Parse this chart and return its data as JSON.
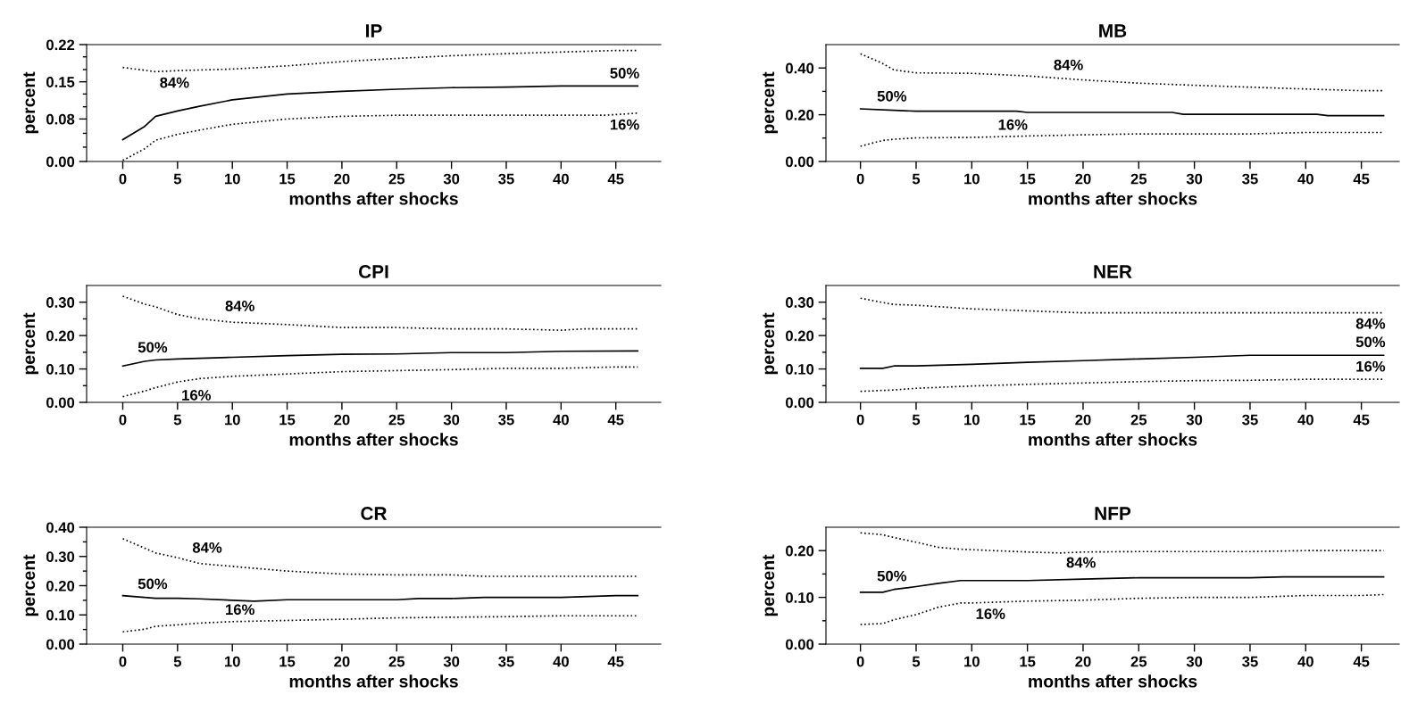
{
  "chart_data": [
    {
      "type": "line",
      "title": "IP",
      "xlabel": "months after shocks",
      "ylabel": "percent",
      "xlim": [
        -3.3,
        49.1
      ],
      "xticks": [
        0,
        5,
        10,
        15,
        20,
        25,
        30,
        35,
        40,
        45
      ],
      "ylim": [
        0,
        0.22
      ],
      "yticks": [
        {
          "value": 0,
          "label": "0.00"
        },
        {
          "value": 0.027,
          "label": null
        },
        {
          "value": 0.053,
          "label": null
        },
        {
          "value": 0.08,
          "label": "0.08"
        },
        {
          "value": 0.103,
          "label": null
        },
        {
          "value": 0.127,
          "label": null
        },
        {
          "value": 0.15,
          "label": "0.15"
        },
        {
          "value": 0.173,
          "label": null
        },
        {
          "value": 0.197,
          "label": null
        },
        {
          "value": 0.22,
          "label": "0.22"
        }
      ],
      "series": [
        {
          "color": "#000000",
          "line_style": "dotted",
          "x": [
            0,
            3,
            5,
            10,
            15,
            20,
            25,
            30,
            35,
            40,
            45,
            47
          ],
          "values": [
            0.177,
            0.169,
            0.171,
            0.174,
            0.18,
            0.188,
            0.194,
            0.199,
            0.203,
            0.206,
            0.209,
            0.209
          ]
        },
        {
          "color": "#000000",
          "line_style": "solid",
          "x": [
            0,
            2,
            3,
            5,
            7,
            10,
            15,
            20,
            25,
            30,
            35,
            40,
            45,
            47
          ],
          "values": [
            0.041,
            0.066,
            0.085,
            0.095,
            0.104,
            0.116,
            0.127,
            0.132,
            0.136,
            0.139,
            0.14,
            0.142,
            0.142,
            0.142
          ]
        },
        {
          "color": "#000000",
          "line_style": "dotted",
          "x": [
            0,
            2,
            3,
            5,
            7,
            10,
            15,
            20,
            25,
            30,
            35,
            40,
            44,
            47
          ],
          "values": [
            0.002,
            0.024,
            0.04,
            0.051,
            0.059,
            0.07,
            0.08,
            0.085,
            0.087,
            0.087,
            0.087,
            0.087,
            0.087,
            0.091
          ]
        }
      ],
      "annotations": [
        "84%",
        "50%",
        "16%"
      ]
    },
    {
      "type": "line",
      "title": "MB",
      "xlabel": "months after shocks",
      "ylabel": "percent",
      "xlim": [
        -3.1,
        48.4
      ],
      "xticks": [
        0,
        5,
        10,
        15,
        20,
        25,
        30,
        35,
        40,
        45
      ],
      "ylim": [
        0,
        0.5
      ],
      "yticks": [
        {
          "value": 0,
          "label": "0.00"
        },
        {
          "value": 0.1,
          "label": null
        },
        {
          "value": 0.2,
          "label": "0.20"
        },
        {
          "value": 0.3,
          "label": null
        },
        {
          "value": 0.4,
          "label": "0.40"
        }
      ],
      "series": [
        {
          "color": "#000000",
          "line_style": "dotted",
          "x": [
            0,
            2,
            3,
            5,
            10,
            15,
            20,
            25,
            30,
            35,
            40,
            45,
            47
          ],
          "values": [
            0.461,
            0.419,
            0.392,
            0.379,
            0.377,
            0.366,
            0.349,
            0.335,
            0.326,
            0.318,
            0.31,
            0.303,
            0.303
          ]
        },
        {
          "color": "#000000",
          "line_style": "solid",
          "x": [
            0,
            3,
            5,
            14,
            15,
            28,
            29,
            41,
            42,
            47
          ],
          "values": [
            0.225,
            0.219,
            0.215,
            0.215,
            0.21,
            0.21,
            0.202,
            0.202,
            0.196,
            0.196
          ]
        },
        {
          "color": "#000000",
          "line_style": "dotted",
          "x": [
            0,
            2,
            3,
            5,
            10,
            15,
            20,
            25,
            30,
            35,
            40,
            47
          ],
          "values": [
            0.065,
            0.09,
            0.095,
            0.101,
            0.103,
            0.109,
            0.114,
            0.118,
            0.118,
            0.118,
            0.124,
            0.124
          ]
        }
      ],
      "annotations": [
        "84%",
        "50%",
        "16%"
      ]
    },
    {
      "type": "line",
      "title": "CPI",
      "xlabel": "months after shocks",
      "ylabel": "percent",
      "xlim": [
        -3.3,
        49.1
      ],
      "xticks": [
        0,
        5,
        10,
        15,
        20,
        25,
        30,
        35,
        40,
        45
      ],
      "ylim": [
        0,
        0.35
      ],
      "yticks": [
        {
          "value": 0,
          "label": "0.00"
        },
        {
          "value": 0.05,
          "label": null
        },
        {
          "value": 0.1,
          "label": "0.10"
        },
        {
          "value": 0.15,
          "label": null
        },
        {
          "value": 0.2,
          "label": "0.20"
        },
        {
          "value": 0.25,
          "label": null
        },
        {
          "value": 0.3,
          "label": "0.30"
        }
      ],
      "series": [
        {
          "color": "#000000",
          "line_style": "dotted",
          "x": [
            0,
            2,
            3,
            5,
            7,
            10,
            15,
            20,
            25,
            30,
            35,
            40,
            42,
            47
          ],
          "values": [
            0.318,
            0.294,
            0.286,
            0.263,
            0.25,
            0.24,
            0.233,
            0.224,
            0.224,
            0.22,
            0.22,
            0.216,
            0.22,
            0.22
          ]
        },
        {
          "color": "#000000",
          "line_style": "solid",
          "x": [
            0,
            2,
            3,
            5,
            10,
            15,
            20,
            25,
            30,
            35,
            40,
            47
          ],
          "values": [
            0.109,
            0.123,
            0.127,
            0.13,
            0.135,
            0.14,
            0.144,
            0.145,
            0.149,
            0.149,
            0.153,
            0.154
          ]
        },
        {
          "color": "#000000",
          "line_style": "dotted",
          "x": [
            0,
            2,
            3,
            5,
            7,
            10,
            15,
            20,
            25,
            30,
            35,
            40,
            45,
            47
          ],
          "values": [
            0.017,
            0.034,
            0.044,
            0.061,
            0.071,
            0.078,
            0.085,
            0.092,
            0.095,
            0.098,
            0.102,
            0.102,
            0.106,
            0.106
          ]
        }
      ],
      "annotations": [
        "84%",
        "50%",
        "16%"
      ]
    },
    {
      "type": "line",
      "title": "NER",
      "xlabel": "months after shocks",
      "ylabel": "percent",
      "xlim": [
        -3.1,
        48.4
      ],
      "xticks": [
        0,
        5,
        10,
        15,
        20,
        25,
        30,
        35,
        40,
        45
      ],
      "ylim": [
        0,
        0.35
      ],
      "yticks": [
        {
          "value": 0,
          "label": "0.00"
        },
        {
          "value": 0.05,
          "label": null
        },
        {
          "value": 0.1,
          "label": "0.10"
        },
        {
          "value": 0.15,
          "label": null
        },
        {
          "value": 0.2,
          "label": "0.20"
        },
        {
          "value": 0.25,
          "label": null
        },
        {
          "value": 0.3,
          "label": "0.30"
        }
      ],
      "series": [
        {
          "color": "#000000",
          "line_style": "dotted",
          "x": [
            0,
            2,
            3,
            5,
            10,
            15,
            20,
            25,
            30,
            35,
            40,
            47
          ],
          "values": [
            0.312,
            0.299,
            0.293,
            0.291,
            0.28,
            0.274,
            0.268,
            0.268,
            0.268,
            0.268,
            0.268,
            0.268
          ]
        },
        {
          "color": "#000000",
          "line_style": "solid",
          "x": [
            0,
            2,
            3,
            5,
            10,
            15,
            20,
            25,
            30,
            35,
            40,
            47
          ],
          "values": [
            0.102,
            0.102,
            0.109,
            0.109,
            0.114,
            0.12,
            0.125,
            0.13,
            0.135,
            0.141,
            0.141,
            0.141
          ]
        },
        {
          "color": "#000000",
          "line_style": "dotted",
          "x": [
            0,
            3,
            5,
            10,
            15,
            20,
            25,
            30,
            35,
            40,
            47
          ],
          "values": [
            0.033,
            0.037,
            0.042,
            0.049,
            0.054,
            0.058,
            0.062,
            0.065,
            0.066,
            0.069,
            0.069
          ]
        }
      ],
      "annotations": [
        "84%",
        "50%",
        "16%"
      ]
    },
    {
      "type": "line",
      "title": "CR",
      "xlabel": "months after shocks",
      "ylabel": "percent",
      "xlim": [
        -3.3,
        49.1
      ],
      "xticks": [
        0,
        5,
        10,
        15,
        20,
        25,
        30,
        35,
        40,
        45
      ],
      "ylim": [
        0,
        0.4
      ],
      "yticks": [
        {
          "value": 0,
          "label": "0.00"
        },
        {
          "value": 0.05,
          "label": null
        },
        {
          "value": 0.1,
          "label": "0.10"
        },
        {
          "value": 0.15,
          "label": null
        },
        {
          "value": 0.2,
          "label": "0.20"
        },
        {
          "value": 0.25,
          "label": null
        },
        {
          "value": 0.3,
          "label": "0.30"
        },
        {
          "value": 0.35,
          "label": null
        },
        {
          "value": 0.4,
          "label": "0.40"
        }
      ],
      "series": [
        {
          "color": "#000000",
          "line_style": "dotted",
          "x": [
            0,
            3,
            5,
            7,
            10,
            15,
            20,
            25,
            30,
            33,
            40,
            47
          ],
          "values": [
            0.361,
            0.312,
            0.296,
            0.276,
            0.266,
            0.25,
            0.24,
            0.237,
            0.237,
            0.232,
            0.232,
            0.232
          ]
        },
        {
          "color": "#000000",
          "line_style": "solid",
          "x": [
            0,
            3,
            5,
            7,
            10,
            12,
            15,
            20,
            25,
            27,
            30,
            33,
            40,
            45,
            47
          ],
          "values": [
            0.166,
            0.157,
            0.157,
            0.155,
            0.15,
            0.147,
            0.152,
            0.152,
            0.152,
            0.156,
            0.156,
            0.16,
            0.16,
            0.166,
            0.166
          ]
        },
        {
          "color": "#000000",
          "line_style": "dotted",
          "x": [
            0,
            2,
            3,
            5,
            7,
            10,
            15,
            20,
            25,
            30,
            35,
            40,
            47
          ],
          "values": [
            0.042,
            0.051,
            0.061,
            0.066,
            0.072,
            0.077,
            0.081,
            0.085,
            0.09,
            0.092,
            0.094,
            0.097,
            0.097
          ]
        }
      ],
      "annotations": [
        "84%",
        "50%",
        "16%"
      ]
    },
    {
      "type": "line",
      "title": "NFP",
      "xlabel": "months after shocks",
      "ylabel": "percent",
      "xlim": [
        -3.1,
        48.4
      ],
      "xticks": [
        0,
        5,
        10,
        15,
        20,
        25,
        30,
        35,
        40,
        45
      ],
      "ylim": [
        0,
        0.25
      ],
      "yticks": [
        {
          "value": 0,
          "label": "0.00"
        },
        {
          "value": 0.05,
          "label": null
        },
        {
          "value": 0.1,
          "label": "0.10"
        },
        {
          "value": 0.15,
          "label": null
        },
        {
          "value": 0.2,
          "label": "0.20"
        }
      ],
      "series": [
        {
          "color": "#000000",
          "line_style": "dotted",
          "x": [
            0,
            2,
            3,
            5,
            7,
            9,
            15,
            18,
            20,
            25,
            35,
            40,
            47
          ],
          "values": [
            0.238,
            0.234,
            0.228,
            0.218,
            0.207,
            0.203,
            0.197,
            0.195,
            0.197,
            0.198,
            0.198,
            0.2,
            0.2
          ]
        },
        {
          "color": "#000000",
          "line_style": "solid",
          "x": [
            0,
            2,
            3,
            5,
            7,
            9,
            15,
            20,
            25,
            30,
            35,
            38,
            47
          ],
          "values": [
            0.111,
            0.111,
            0.117,
            0.123,
            0.13,
            0.136,
            0.136,
            0.139,
            0.142,
            0.142,
            0.142,
            0.144,
            0.144
          ]
        },
        {
          "color": "#000000",
          "line_style": "dotted",
          "x": [
            0,
            2,
            3,
            5,
            7,
            9,
            10,
            15,
            20,
            25,
            30,
            35,
            40,
            45,
            47
          ],
          "values": [
            0.042,
            0.044,
            0.052,
            0.063,
            0.079,
            0.088,
            0.088,
            0.092,
            0.094,
            0.098,
            0.1,
            0.1,
            0.104,
            0.104,
            0.106
          ]
        }
      ],
      "annotations": [
        "84%",
        "50%",
        "16%"
      ]
    }
  ]
}
